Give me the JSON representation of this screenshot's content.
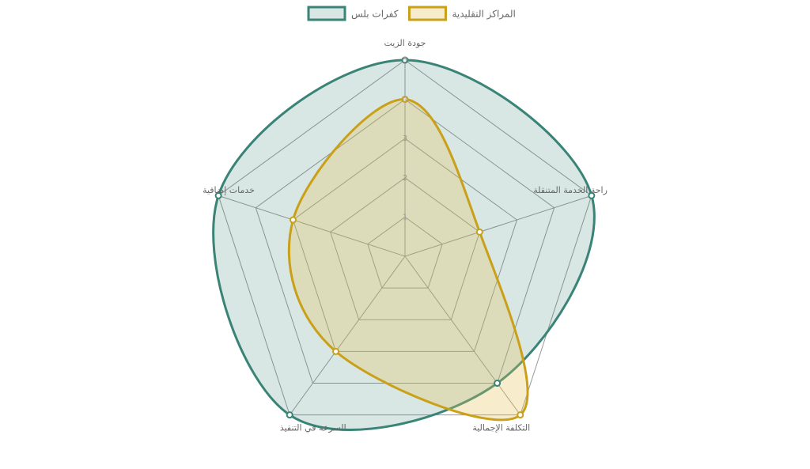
{
  "chart_data": {
    "type": "radar",
    "categories": [
      "جودة الزيت",
      "راحة الخدمة المتنقلة",
      "التكلفة الإجمالية",
      "السرعة في التنفيذ",
      "خدمات إضافية"
    ],
    "rlim": [
      0,
      5
    ],
    "rticks": [
      1,
      2,
      3,
      4,
      5
    ],
    "series": [
      {
        "name": "كفرات بلس",
        "color": "#3a8477",
        "fill": "rgba(58,132,119,0.2)",
        "values": [
          5,
          5,
          4,
          5,
          5
        ]
      },
      {
        "name": "المراكز التقليدية",
        "color": "#c9a018",
        "fill": "rgba(230,196,90,0.3)",
        "values": [
          4,
          2,
          5,
          3,
          3
        ]
      }
    ]
  }
}
